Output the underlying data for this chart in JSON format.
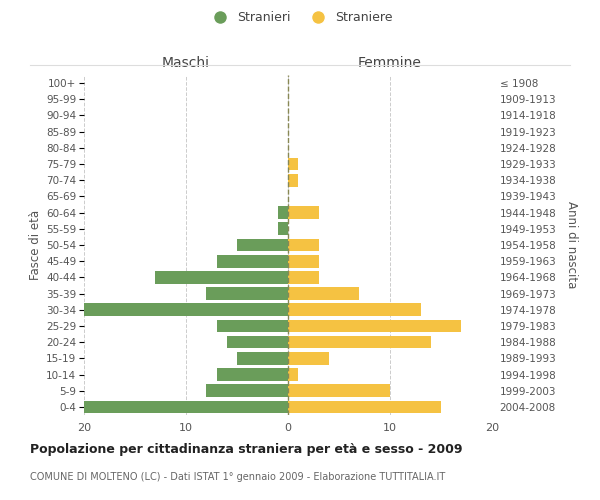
{
  "age_groups": [
    "0-4",
    "5-9",
    "10-14",
    "15-19",
    "20-24",
    "25-29",
    "30-34",
    "35-39",
    "40-44",
    "45-49",
    "50-54",
    "55-59",
    "60-64",
    "65-69",
    "70-74",
    "75-79",
    "80-84",
    "85-89",
    "90-94",
    "95-99",
    "100+"
  ],
  "birth_years": [
    "2004-2008",
    "1999-2003",
    "1994-1998",
    "1989-1993",
    "1984-1988",
    "1979-1983",
    "1974-1978",
    "1969-1973",
    "1964-1968",
    "1959-1963",
    "1954-1958",
    "1949-1953",
    "1944-1948",
    "1939-1943",
    "1934-1938",
    "1929-1933",
    "1924-1928",
    "1919-1923",
    "1914-1918",
    "1909-1913",
    "≤ 1908"
  ],
  "maschi": [
    20,
    8,
    7,
    5,
    6,
    7,
    20,
    8,
    13,
    7,
    5,
    1,
    1,
    0,
    0,
    0,
    0,
    0,
    0,
    0,
    0
  ],
  "femmine": [
    15,
    10,
    1,
    4,
    14,
    17,
    13,
    7,
    3,
    3,
    3,
    0,
    3,
    0,
    1,
    1,
    0,
    0,
    0,
    0,
    0
  ],
  "color_maschi": "#6a9d5a",
  "color_femmine": "#f5c242",
  "background_color": "#ffffff",
  "grid_color": "#cccccc",
  "center_line_color": "#888855",
  "title": "Popolazione per cittadinanza straniera per età e sesso - 2009",
  "subtitle": "COMUNE DI MOLTENO (LC) - Dati ISTAT 1° gennaio 2009 - Elaborazione TUTTITALIA.IT",
  "ylabel_left": "Fasce di età",
  "ylabel_right": "Anni di nascita",
  "xlabel_left": "Maschi",
  "xlabel_right": "Femmine",
  "legend_maschi": "Stranieri",
  "legend_femmine": "Straniere",
  "xlim": 20,
  "tick_color": "#888888",
  "label_color": "#555555"
}
